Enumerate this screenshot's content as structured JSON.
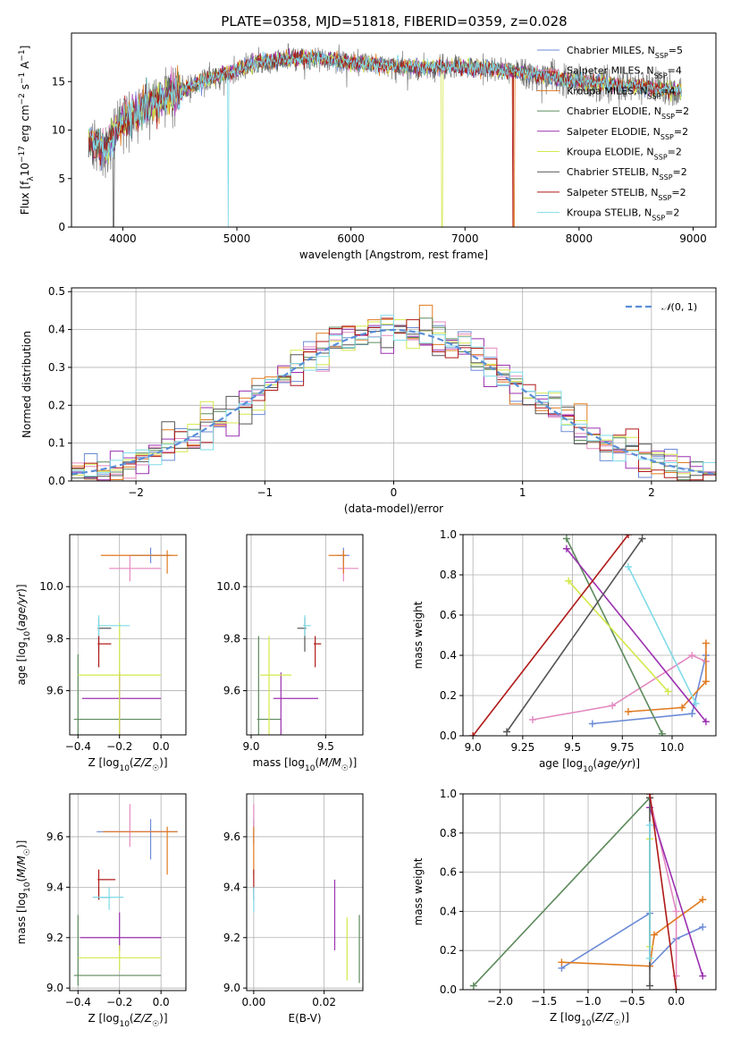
{
  "title": "PLATE=0358, MJD=51818, FIBERID=0359, z=0.028",
  "colors": {
    "chabrier_miles": "#6b8ad6",
    "salpeter_miles": "#e389c0",
    "kroupa_miles": "#e07a1f",
    "chabrier_elodie": "#5c8a5c",
    "salpeter_elodie": "#9b30b0",
    "kroupa_elodie": "#d4e84a",
    "chabrier_stelib": "#555555",
    "salpeter_stelib": "#b01818",
    "kroupa_stelib": "#7fdbe8",
    "normal": "#5a8ed8"
  },
  "models": [
    {
      "key": "chabrier_miles",
      "imf": "Chabrier",
      "lib": "MILES",
      "n": "5"
    },
    {
      "key": "salpeter_miles",
      "imf": "Salpeter",
      "lib": "MILES",
      "n": "4"
    },
    {
      "key": "kroupa_miles",
      "imf": "Kroupa",
      "lib": "MILES",
      "n": "4"
    },
    {
      "key": "chabrier_elodie",
      "imf": "Chabrier",
      "lib": "ELODIE",
      "n": "2"
    },
    {
      "key": "salpeter_elodie",
      "imf": "Salpeter",
      "lib": "ELODIE",
      "n": "2"
    },
    {
      "key": "kroupa_elodie",
      "imf": "Kroupa",
      "lib": "ELODIE",
      "n": "2"
    },
    {
      "key": "chabrier_stelib",
      "imf": "Chabrier",
      "lib": "STELIB",
      "n": "2"
    },
    {
      "key": "salpeter_stelib",
      "imf": "Salpeter",
      "lib": "STELIB",
      "n": "2"
    },
    {
      "key": "kroupa_stelib",
      "imf": "Kroupa",
      "lib": "STELIB",
      "n": "2"
    }
  ],
  "chart_data": [
    {
      "id": "spectrum",
      "type": "line",
      "xlabel": "wavelength [Angstrom, rest frame]",
      "ylabel": "Flux [f_λ 10^-17 erg cm^-2 s^-1 A^-1]",
      "xlim": [
        3550,
        9200
      ],
      "ylim": [
        0,
        20
      ],
      "xticks": [
        4000,
        5000,
        6000,
        7000,
        8000,
        9000
      ],
      "yticks": [
        0,
        5,
        10,
        15
      ],
      "legend_position": "upper right",
      "spectrum_range": [
        3700,
        8900
      ],
      "continuum_profile": [
        [
          3700,
          9
        ],
        [
          3850,
          8
        ],
        [
          4000,
          11
        ],
        [
          4200,
          12.5
        ],
        [
          4500,
          14
        ],
        [
          4800,
          15.5
        ],
        [
          5200,
          17
        ],
        [
          5600,
          17.5
        ],
        [
          6000,
          17
        ],
        [
          6500,
          16.5
        ],
        [
          7000,
          16.5
        ],
        [
          7500,
          16
        ],
        [
          8000,
          15
        ],
        [
          8500,
          14.5
        ],
        [
          8900,
          14
        ]
      ],
      "dropouts": [
        {
          "series": "kroupa_elodie",
          "x": 6800
        },
        {
          "series": "salpeter_stelib",
          "x": 7420
        },
        {
          "series": "kroupa_miles",
          "x": 7430
        },
        {
          "series": "kroupa_stelib",
          "x": 4925
        },
        {
          "series": "chabrier_stelib",
          "x": 3920
        }
      ]
    },
    {
      "id": "residuals",
      "type": "line",
      "xlabel": "(data-model)/error",
      "ylabel": "Normed distribution",
      "xlim": [
        -2.5,
        2.5
      ],
      "ylim": [
        0,
        0.51
      ],
      "xticks": [
        -2,
        -1,
        0,
        1,
        2
      ],
      "yticks": [
        0.0,
        0.1,
        0.2,
        0.3,
        0.4,
        0.5
      ],
      "legend_label": "N(0,1)",
      "legend_position": "upper right",
      "histogram_bins": 50,
      "histogram_style": "step"
    },
    {
      "id": "age_vs_Z",
      "type": "scatter",
      "xlabel": "Z [log10(Z/Z☉)]",
      "ylabel": "age [log10(age/yr)]",
      "xlim": [
        -0.44,
        0.12
      ],
      "ylim": [
        9.43,
        10.2
      ],
      "xticks": [
        -0.4,
        -0.2,
        0.0
      ],
      "yticks": [
        9.6,
        9.8,
        10.0
      ],
      "points": [
        {
          "series": "chabrier_miles",
          "x": -0.05,
          "y": 10.12,
          "xerr": [
            0.1,
            0.1
          ],
          "yerr": [
            0.03,
            0.03
          ]
        },
        {
          "series": "salpeter_miles",
          "x": -0.15,
          "y": 10.07,
          "xerr": [
            0.1,
            0.15
          ],
          "yerr": [
            0.05,
            0.05
          ]
        },
        {
          "series": "kroupa_miles",
          "x": 0.03,
          "y": 10.12,
          "xerr": [
            0.32,
            0.05
          ],
          "yerr": [
            0.07,
            0.02
          ]
        },
        {
          "series": "chabrier_elodie",
          "x": -0.4,
          "y": 9.49,
          "xerr": [
            0.02,
            0.4
          ],
          "yerr": [
            0.32,
            0.25
          ]
        },
        {
          "series": "salpeter_elodie",
          "x": -0.2,
          "y": 9.57,
          "xerr": [
            0.18,
            0.2
          ],
          "yerr": [
            0.14,
            0.1
          ]
        },
        {
          "series": "kroupa_elodie",
          "x": -0.2,
          "y": 9.66,
          "xerr": [
            0.2,
            0.2
          ],
          "yerr": [
            0.23,
            0.2
          ]
        },
        {
          "series": "chabrier_stelib",
          "x": -0.3,
          "y": 9.84,
          "xerr": [
            0.005,
            0.06
          ],
          "yerr": [
            0.09,
            0.04
          ]
        },
        {
          "series": "salpeter_stelib",
          "x": -0.3,
          "y": 9.78,
          "xerr": [
            0.005,
            0.06
          ],
          "yerr": [
            0.09,
            0.03
          ]
        },
        {
          "series": "kroupa_stelib",
          "x": -0.3,
          "y": 9.85,
          "xerr": [
            0.005,
            0.15
          ],
          "yerr": [
            0.04,
            0.04
          ]
        }
      ]
    },
    {
      "id": "age_vs_mass",
      "type": "scatter",
      "xlabel": "mass [log10(M/M☉)]",
      "ylabel": "",
      "xlim": [
        8.97,
        9.75
      ],
      "ylim": [
        9.43,
        10.2
      ],
      "xticks": [
        9.0,
        9.5
      ],
      "yticks": [
        9.6,
        9.8,
        10.0
      ],
      "points": [
        {
          "series": "chabrier_miles",
          "x": 9.62,
          "y": 10.12,
          "xerr": [
            0.04,
            0.04
          ],
          "yerr": [
            0.03,
            0.03
          ]
        },
        {
          "series": "salpeter_miles",
          "x": 9.62,
          "y": 10.07,
          "xerr": [
            0.04,
            0.1
          ],
          "yerr": [
            0.05,
            0.03
          ]
        },
        {
          "series": "kroupa_miles",
          "x": 9.62,
          "y": 10.12,
          "xerr": [
            0.1,
            0.02
          ],
          "yerr": [
            0.07,
            0.02
          ]
        },
        {
          "series": "chabrier_elodie",
          "x": 9.05,
          "y": 9.49,
          "xerr": [
            0.01,
            0.15
          ],
          "yerr": [
            0.06,
            0.32
          ]
        },
        {
          "series": "salpeter_elodie",
          "x": 9.2,
          "y": 9.57,
          "xerr": [
            0.05,
            0.25
          ],
          "yerr": [
            0.14,
            0.1
          ]
        },
        {
          "series": "kroupa_elodie",
          "x": 9.12,
          "y": 9.66,
          "xerr": [
            0.06,
            0.15
          ],
          "yerr": [
            0.23,
            0.15
          ]
        },
        {
          "series": "chabrier_stelib",
          "x": 9.36,
          "y": 9.84,
          "xerr": [
            0.05,
            0.01
          ],
          "yerr": [
            0.09,
            0.04
          ]
        },
        {
          "series": "salpeter_stelib",
          "x": 9.43,
          "y": 9.78,
          "xerr": [
            0.01,
            0.04
          ],
          "yerr": [
            0.09,
            0.03
          ]
        },
        {
          "series": "kroupa_stelib",
          "x": 9.36,
          "y": 9.85,
          "xerr": [
            0.01,
            0.04
          ],
          "yerr": [
            0.04,
            0.04
          ]
        }
      ]
    },
    {
      "id": "mass_weight_vs_age",
      "type": "line",
      "xlabel": "age [log10(age/yr)]",
      "ylabel": "mass weight",
      "xlim": [
        8.95,
        10.22
      ],
      "ylim": [
        0,
        1.0
      ],
      "xticks": [
        9.0,
        9.25,
        9.5,
        9.75,
        10.0
      ],
      "yticks": [
        0.0,
        0.2,
        0.4,
        0.6,
        0.8,
        1.0
      ],
      "series": [
        {
          "series": "chabrier_miles",
          "x": [
            9.6,
            10.1,
            10.17
          ],
          "y": [
            0.06,
            0.11,
            0.4
          ]
        },
        {
          "series": "salpeter_miles",
          "x": [
            9.3,
            9.7,
            10.1,
            10.17
          ],
          "y": [
            0.08,
            0.15,
            0.4,
            0.37
          ]
        },
        {
          "series": "kroupa_miles",
          "x": [
            9.78,
            10.05,
            10.17,
            10.17
          ],
          "y": [
            0.12,
            0.14,
            0.27,
            0.46
          ]
        },
        {
          "series": "chabrier_elodie",
          "x": [
            9.47,
            9.95
          ],
          "y": [
            0.98,
            0.01
          ]
        },
        {
          "series": "salpeter_elodie",
          "x": [
            9.47,
            10.17
          ],
          "y": [
            0.93,
            0.07
          ]
        },
        {
          "series": "kroupa_elodie",
          "x": [
            9.48,
            9.98
          ],
          "y": [
            0.77,
            0.22
          ]
        },
        {
          "series": "chabrier_stelib",
          "x": [
            9.17,
            9.85
          ],
          "y": [
            0.02,
            0.98
          ]
        },
        {
          "series": "salpeter_stelib",
          "x": [
            9.0,
            9.78
          ],
          "y": [
            0.0,
            1.0
          ]
        },
        {
          "series": "kroupa_stelib",
          "x": [
            9.78,
            10.12
          ],
          "y": [
            0.84,
            0.16
          ]
        }
      ]
    },
    {
      "id": "mass_vs_Z",
      "type": "scatter",
      "xlabel": "Z [log10(Z/Z☉)]",
      "ylabel": "mass [log10(M/M☉)]",
      "xlim": [
        -0.44,
        0.12
      ],
      "ylim": [
        8.99,
        9.77
      ],
      "xticks": [
        -0.4,
        -0.2,
        0.0
      ],
      "yticks": [
        9.0,
        9.2,
        9.4,
        9.6
      ],
      "points": [
        {
          "series": "chabrier_miles",
          "x": -0.05,
          "y": 9.62,
          "xerr": [
            0.26,
            0.13
          ],
          "yerr": [
            0.11,
            0.05
          ]
        },
        {
          "series": "salpeter_miles",
          "x": -0.15,
          "y": 9.62,
          "xerr": [
            0.11,
            0.2
          ],
          "yerr": [
            0.06,
            0.11
          ]
        },
        {
          "series": "kroupa_miles",
          "x": 0.03,
          "y": 9.62,
          "xerr": [
            0.31,
            0.05
          ],
          "yerr": [
            0.17,
            0.02
          ]
        },
        {
          "series": "chabrier_elodie",
          "x": -0.4,
          "y": 9.05,
          "xerr": [
            0.02,
            0.4
          ],
          "yerr": [
            0.04,
            0.24
          ]
        },
        {
          "series": "salpeter_elodie",
          "x": -0.2,
          "y": 9.2,
          "xerr": [
            0.19,
            0.2
          ],
          "yerr": [
            0.05,
            0.1
          ]
        },
        {
          "series": "kroupa_elodie",
          "x": -0.2,
          "y": 9.12,
          "xerr": [
            0.2,
            0.2
          ],
          "yerr": [
            0.05,
            0.05
          ]
        },
        {
          "series": "chabrier_stelib",
          "x": -0.3,
          "y": 9.36,
          "xerr": [
            0.005,
            0.06
          ],
          "yerr": [
            0.01,
            0.04
          ]
        },
        {
          "series": "salpeter_stelib",
          "x": -0.3,
          "y": 9.43,
          "xerr": [
            0.005,
            0.08
          ],
          "yerr": [
            0.08,
            0.04
          ]
        },
        {
          "series": "kroupa_stelib",
          "x": -0.25,
          "y": 9.36,
          "xerr": [
            0.08,
            0.07
          ],
          "yerr": [
            0.05,
            0.04
          ]
        }
      ]
    },
    {
      "id": "mass_vs_ebv",
      "type": "scatter",
      "xlabel": "E(B-V)",
      "ylabel": "",
      "xlim": [
        -0.002,
        0.031
      ],
      "ylim": [
        8.99,
        9.77
      ],
      "xticks": [
        0.0,
        0.02
      ],
      "yticks": [
        9.0,
        9.2,
        9.4,
        9.6
      ],
      "points": [
        {
          "series": "chabrier_miles",
          "x": 0.0,
          "y": 9.62,
          "yerr": [
            0.05,
            0.05
          ]
        },
        {
          "series": "salpeter_miles",
          "x": 0.0,
          "y": 9.62,
          "yerr": [
            0.05,
            0.11
          ]
        },
        {
          "series": "kroupa_miles",
          "x": 0.0,
          "y": 9.62,
          "yerr": [
            0.17,
            0.02
          ]
        },
        {
          "series": "chabrier_elodie",
          "x": 0.03,
          "y": 9.1,
          "yerr": [
            0.08,
            0.19
          ]
        },
        {
          "series": "salpeter_elodie",
          "x": 0.023,
          "y": 9.3,
          "yerr": [
            0.15,
            0.13
          ]
        },
        {
          "series": "kroupa_elodie",
          "x": 0.0265,
          "y": 9.1,
          "yerr": [
            0.07,
            0.18
          ]
        },
        {
          "series": "chabrier_stelib",
          "x": 0.0,
          "y": 9.38,
          "yerr": [
            0.03,
            0.02
          ]
        },
        {
          "series": "salpeter_stelib",
          "x": 0.0,
          "y": 9.43,
          "yerr": [
            0.04,
            0.04
          ]
        },
        {
          "series": "kroupa_stelib",
          "x": 0.0,
          "y": 9.36,
          "yerr": [
            0.06,
            0.04
          ]
        }
      ]
    },
    {
      "id": "mass_weight_vs_Z",
      "type": "line",
      "xlabel": "Z [log10(Z/Z☉)]",
      "ylabel": "mass weight",
      "xlim": [
        -2.42,
        0.45
      ],
      "ylim": [
        0,
        1.0
      ],
      "xticks": [
        -2.0,
        -1.5,
        -1.0,
        -0.5,
        0.0
      ],
      "yticks": [
        0.0,
        0.2,
        0.4,
        0.6,
        0.8,
        1.0
      ],
      "series": [
        {
          "series": "chabrier_miles",
          "x": [
            -1.3,
            -0.3,
            -0.3,
            0.0,
            0.3
          ],
          "y": [
            0.11,
            0.39,
            0.12,
            0.26,
            0.32
          ]
        },
        {
          "series": "salpeter_miles",
          "x": [
            -0.3,
            0.0,
            0.0
          ],
          "y": [
            0.98,
            0.4,
            0.07
          ]
        },
        {
          "series": "kroupa_miles",
          "x": [
            -1.3,
            -0.3,
            -0.25,
            0.3
          ],
          "y": [
            0.14,
            0.12,
            0.28,
            0.46
          ]
        },
        {
          "series": "chabrier_elodie",
          "x": [
            -2.3,
            -0.3
          ],
          "y": [
            0.02,
            0.98
          ]
        },
        {
          "series": "salpeter_elodie",
          "x": [
            -0.3,
            0.3
          ],
          "y": [
            0.93,
            0.07
          ]
        },
        {
          "series": "kroupa_elodie",
          "x": [
            -0.3,
            -0.3
          ],
          "y": [
            0.77,
            0.22
          ]
        },
        {
          "series": "chabrier_stelib",
          "x": [
            -0.3,
            -0.3
          ],
          "y": [
            0.02,
            0.98
          ]
        },
        {
          "series": "salpeter_stelib",
          "x": [
            -0.3,
            0.0
          ],
          "y": [
            1.0,
            0.0
          ]
        },
        {
          "series": "kroupa_stelib",
          "x": [
            -0.3,
            -0.3
          ],
          "y": [
            0.84,
            0.16
          ]
        }
      ]
    }
  ]
}
